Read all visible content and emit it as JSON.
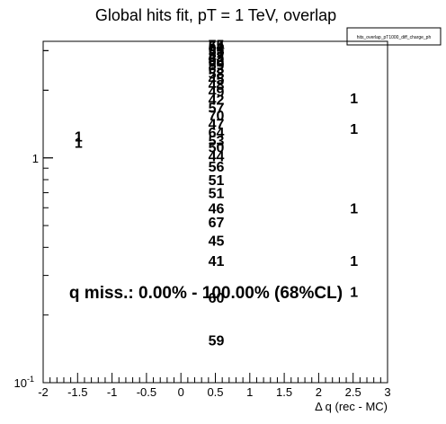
{
  "chart_data": {
    "type": "scatter",
    "title": "Global hits fit, pT = 1 TeV, overlap",
    "stats_box_label": "hits_overlap_pT1000_diff_charge_ph",
    "xlabel": "Δ q (rec - MC)",
    "ylabel": "",
    "xlim": [
      -2,
      3
    ],
    "ylim": [
      0.1,
      3.3
    ],
    "y_log": true,
    "x_tick_labels": [
      "-2",
      "-1.5",
      "-1",
      "-0.5",
      "0",
      "0.5",
      "1",
      "1.5",
      "2",
      "2.5",
      "3"
    ],
    "x_ticks": [
      -2,
      -1.5,
      -1,
      -0.5,
      0,
      0.5,
      1,
      1.5,
      2,
      2.5,
      3
    ],
    "y_ticks": [
      {
        "value": 0.1,
        "label": "10",
        "exponent": "-1"
      },
      {
        "value": 1,
        "label": "1",
        "exponent": ""
      }
    ],
    "annotation": "q miss.: 0.00% - 100.00% (68%CL)",
    "points": [
      {
        "x": 0.5,
        "y": 3.2,
        "label": "75"
      },
      {
        "x": 0.5,
        "y": 3.15,
        "label": "54"
      },
      {
        "x": 0.5,
        "y": 3.08,
        "label": "61"
      },
      {
        "x": 0.5,
        "y": 3.0,
        "label": "55"
      },
      {
        "x": 0.5,
        "y": 2.9,
        "label": "57"
      },
      {
        "x": 0.5,
        "y": 2.82,
        "label": "43"
      },
      {
        "x": 0.5,
        "y": 2.75,
        "label": "52"
      },
      {
        "x": 0.5,
        "y": 2.68,
        "label": "60"
      },
      {
        "x": 0.5,
        "y": 2.6,
        "label": "59"
      },
      {
        "x": 0.5,
        "y": 2.5,
        "label": "63"
      },
      {
        "x": 0.5,
        "y": 2.38,
        "label": "58"
      },
      {
        "x": 0.5,
        "y": 2.25,
        "label": "45"
      },
      {
        "x": 0.5,
        "y": 2.12,
        "label": "48"
      },
      {
        "x": 0.5,
        "y": 1.98,
        "label": "49"
      },
      {
        "x": 0.5,
        "y": 1.82,
        "label": "42"
      },
      {
        "x": 0.5,
        "y": 1.68,
        "label": "57"
      },
      {
        "x": 0.5,
        "y": 1.55,
        "label": "70"
      },
      {
        "x": 0.5,
        "y": 1.42,
        "label": "47"
      },
      {
        "x": 0.5,
        "y": 1.3,
        "label": "64"
      },
      {
        "x": 0.5,
        "y": 1.2,
        "label": "53"
      },
      {
        "x": 0.5,
        "y": 1.12,
        "label": "50"
      },
      {
        "x": 0.5,
        "y": 1.02,
        "label": "44"
      },
      {
        "x": 0.5,
        "y": 0.92,
        "label": "56"
      },
      {
        "x": 0.5,
        "y": 0.8,
        "label": "51"
      },
      {
        "x": 0.5,
        "y": 0.7,
        "label": "51"
      },
      {
        "x": 0.5,
        "y": 0.6,
        "label": "46"
      },
      {
        "x": 0.5,
        "y": 0.52,
        "label": "67"
      },
      {
        "x": 0.5,
        "y": 0.43,
        "label": "45"
      },
      {
        "x": 0.5,
        "y": 0.35,
        "label": "41"
      },
      {
        "x": 0.5,
        "y": 0.24,
        "label": "60"
      },
      {
        "x": 0.5,
        "y": 0.155,
        "label": "59"
      },
      {
        "x": -1.5,
        "y": 1.25,
        "label": "1"
      },
      {
        "x": -1.5,
        "y": 1.17,
        "label": "1"
      },
      {
        "x": 2.5,
        "y": 1.85,
        "label": "1"
      },
      {
        "x": 2.5,
        "y": 1.35,
        "label": "1"
      },
      {
        "x": 2.5,
        "y": 0.6,
        "label": "1"
      },
      {
        "x": 2.5,
        "y": 0.35,
        "label": "1"
      },
      {
        "x": 2.5,
        "y": 0.255,
        "label": "1"
      }
    ]
  }
}
